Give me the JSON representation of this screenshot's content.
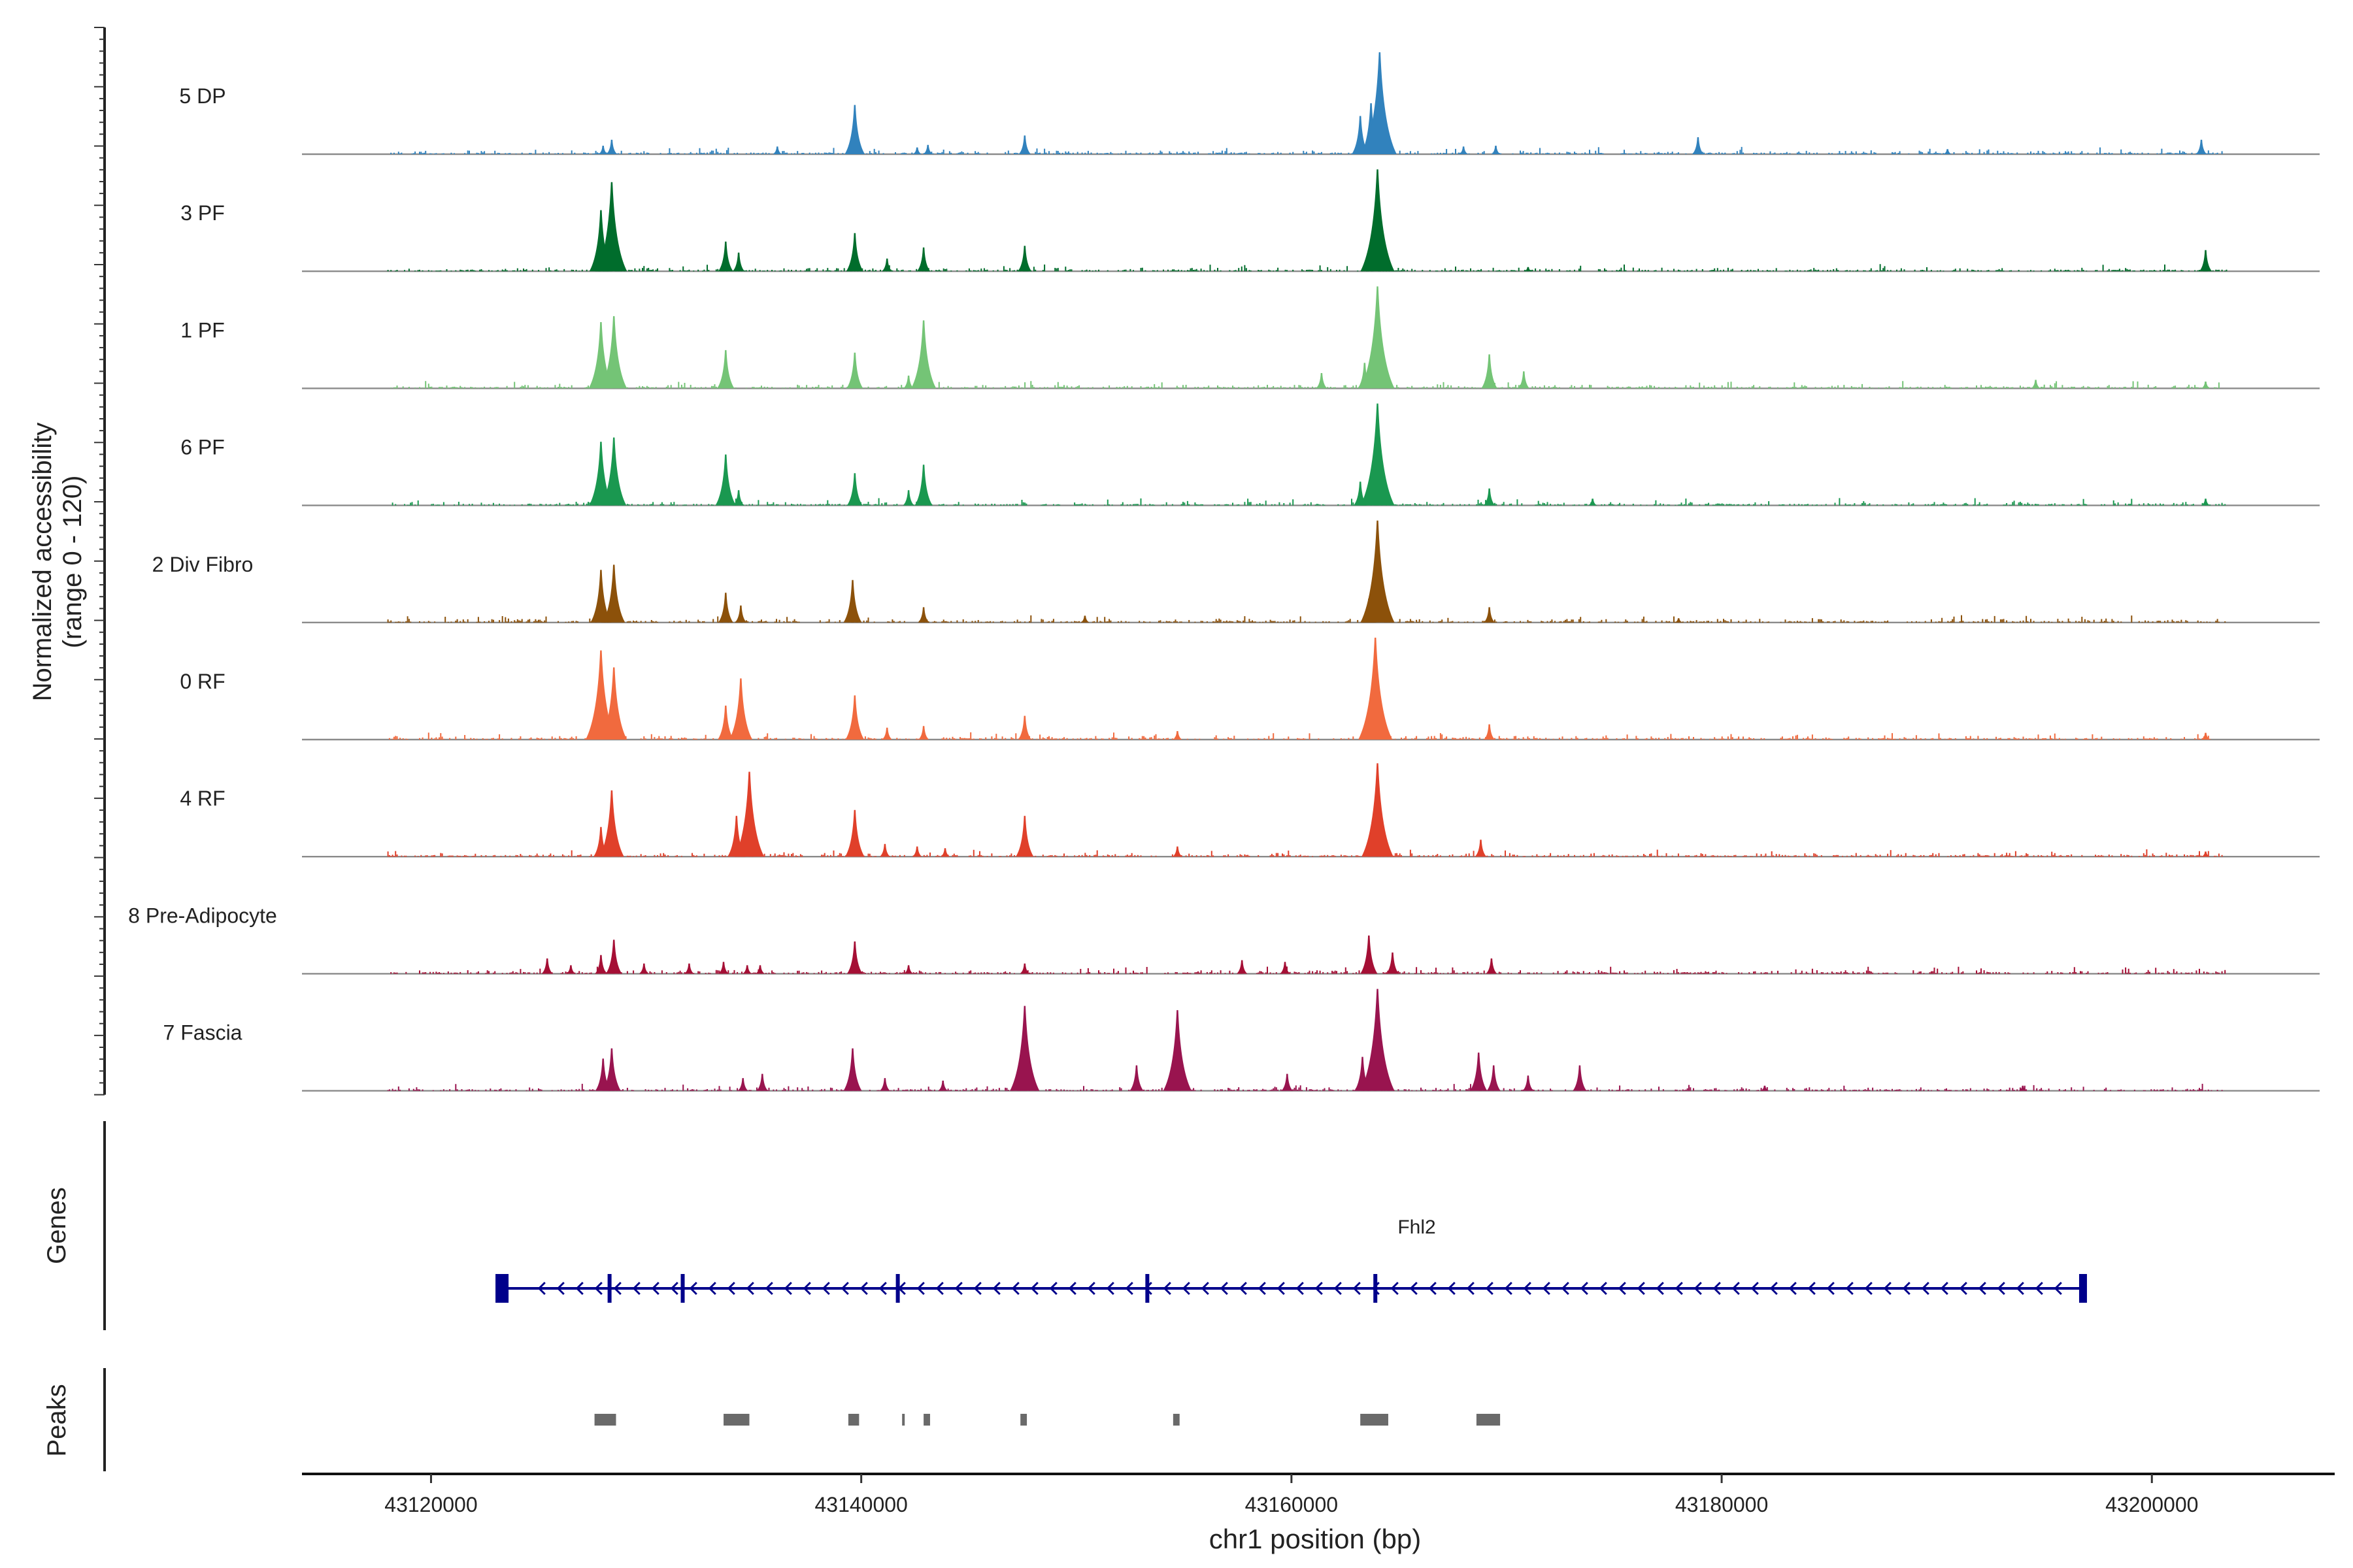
{
  "chart_data": {
    "type": "coverage",
    "ylabel_lines": [
      "Normalized accessibility",
      "(range 0 - 120)"
    ],
    "xlabel": "chr1 position (bp)",
    "xlim": [
      43114000,
      43208500
    ],
    "ylim": [
      0,
      120
    ],
    "x_ticks": [
      43120000,
      43140000,
      43160000,
      43180000,
      43200000
    ],
    "x_tick_labels": [
      "43120000",
      "43140000",
      "43160000",
      "43180000",
      "43200000"
    ],
    "tracks": [
      {
        "name": "5 DP",
        "color": "#3182bd",
        "peaks": [
          {
            "x": 43128000,
            "y": 10
          },
          {
            "x": 43128400,
            "y": 17
          },
          {
            "x": 43136100,
            "y": 9
          },
          {
            "x": 43139700,
            "y": 58
          },
          {
            "x": 43142600,
            "y": 8
          },
          {
            "x": 43143100,
            "y": 11
          },
          {
            "x": 43147600,
            "y": 22
          },
          {
            "x": 43163200,
            "y": 45
          },
          {
            "x": 43163700,
            "y": 60
          },
          {
            "x": 43164100,
            "y": 120
          },
          {
            "x": 43168000,
            "y": 9
          },
          {
            "x": 43169500,
            "y": 10
          },
          {
            "x": 43178900,
            "y": 20
          },
          {
            "x": 43190500,
            "y": 6
          },
          {
            "x": 43202300,
            "y": 17
          }
        ]
      },
      {
        "name": "3 PF",
        "color": "#006d2c",
        "peaks": [
          {
            "x": 43127900,
            "y": 72
          },
          {
            "x": 43128400,
            "y": 105
          },
          {
            "x": 43133700,
            "y": 35
          },
          {
            "x": 43134300,
            "y": 22
          },
          {
            "x": 43139700,
            "y": 45
          },
          {
            "x": 43141200,
            "y": 15
          },
          {
            "x": 43142900,
            "y": 28
          },
          {
            "x": 43147600,
            "y": 30
          },
          {
            "x": 43164000,
            "y": 120
          },
          {
            "x": 43171000,
            "y": 5
          },
          {
            "x": 43202500,
            "y": 25
          }
        ]
      },
      {
        "name": "1 PF",
        "color": "#74c476",
        "peaks": [
          {
            "x": 43127900,
            "y": 78
          },
          {
            "x": 43128500,
            "y": 85
          },
          {
            "x": 43133700,
            "y": 45
          },
          {
            "x": 43139700,
            "y": 42
          },
          {
            "x": 43142200,
            "y": 15
          },
          {
            "x": 43142900,
            "y": 80
          },
          {
            "x": 43161400,
            "y": 18
          },
          {
            "x": 43163400,
            "y": 30
          },
          {
            "x": 43164000,
            "y": 120
          },
          {
            "x": 43169200,
            "y": 40
          },
          {
            "x": 43170800,
            "y": 20
          },
          {
            "x": 43194600,
            "y": 10
          },
          {
            "x": 43202500,
            "y": 8
          }
        ]
      },
      {
        "name": "6 PF",
        "color": "#1a9850",
        "peaks": [
          {
            "x": 43127900,
            "y": 75
          },
          {
            "x": 43128500,
            "y": 80
          },
          {
            "x": 43133700,
            "y": 60
          },
          {
            "x": 43134300,
            "y": 18
          },
          {
            "x": 43139700,
            "y": 38
          },
          {
            "x": 43142200,
            "y": 18
          },
          {
            "x": 43142900,
            "y": 48
          },
          {
            "x": 43163200,
            "y": 28
          },
          {
            "x": 43164000,
            "y": 120
          },
          {
            "x": 43169200,
            "y": 20
          },
          {
            "x": 43174000,
            "y": 8
          },
          {
            "x": 43202500,
            "y": 8
          }
        ]
      },
      {
        "name": "2 Div Fibro",
        "color": "#8c510a",
        "peaks": [
          {
            "x": 43127900,
            "y": 62
          },
          {
            "x": 43128500,
            "y": 68
          },
          {
            "x": 43133700,
            "y": 35
          },
          {
            "x": 43134400,
            "y": 20
          },
          {
            "x": 43139600,
            "y": 50
          },
          {
            "x": 43142900,
            "y": 18
          },
          {
            "x": 43150400,
            "y": 8
          },
          {
            "x": 43163600,
            "y": 28
          },
          {
            "x": 43164000,
            "y": 120
          },
          {
            "x": 43169200,
            "y": 18
          },
          {
            "x": 43178000,
            "y": 5
          }
        ]
      },
      {
        "name": "0 RF",
        "color": "#f16a3e",
        "peaks": [
          {
            "x": 43127900,
            "y": 105
          },
          {
            "x": 43128500,
            "y": 85
          },
          {
            "x": 43133700,
            "y": 40
          },
          {
            "x": 43134400,
            "y": 72
          },
          {
            "x": 43139700,
            "y": 52
          },
          {
            "x": 43141200,
            "y": 14
          },
          {
            "x": 43142900,
            "y": 16
          },
          {
            "x": 43147600,
            "y": 28
          },
          {
            "x": 43154700,
            "y": 10
          },
          {
            "x": 43163900,
            "y": 120
          },
          {
            "x": 43169200,
            "y": 18
          },
          {
            "x": 43202500,
            "y": 8
          }
        ]
      },
      {
        "name": "4 RF",
        "color": "#e0402a",
        "peaks": [
          {
            "x": 43127900,
            "y": 35
          },
          {
            "x": 43128400,
            "y": 78
          },
          {
            "x": 43134200,
            "y": 48
          },
          {
            "x": 43134800,
            "y": 100
          },
          {
            "x": 43139700,
            "y": 55
          },
          {
            "x": 43141100,
            "y": 15
          },
          {
            "x": 43142600,
            "y": 12
          },
          {
            "x": 43143900,
            "y": 10
          },
          {
            "x": 43147600,
            "y": 48
          },
          {
            "x": 43154700,
            "y": 12
          },
          {
            "x": 43164000,
            "y": 110
          },
          {
            "x": 43168800,
            "y": 20
          },
          {
            "x": 43202500,
            "y": 6
          }
        ]
      },
      {
        "name": "8 Pre-Adipocyte",
        "color": "#a50f35",
        "peaks": [
          {
            "x": 43125400,
            "y": 18
          },
          {
            "x": 43126500,
            "y": 10
          },
          {
            "x": 43127900,
            "y": 22
          },
          {
            "x": 43128500,
            "y": 40
          },
          {
            "x": 43129900,
            "y": 12
          },
          {
            "x": 43132000,
            "y": 12
          },
          {
            "x": 43133600,
            "y": 14
          },
          {
            "x": 43134700,
            "y": 10
          },
          {
            "x": 43135300,
            "y": 10
          },
          {
            "x": 43139700,
            "y": 38
          },
          {
            "x": 43142200,
            "y": 10
          },
          {
            "x": 43147600,
            "y": 12
          },
          {
            "x": 43157700,
            "y": 16
          },
          {
            "x": 43159700,
            "y": 14
          },
          {
            "x": 43163600,
            "y": 45
          },
          {
            "x": 43164700,
            "y": 25
          },
          {
            "x": 43169300,
            "y": 18
          }
        ]
      },
      {
        "name": "7 Fascia",
        "color": "#99144f",
        "peaks": [
          {
            "x": 43128000,
            "y": 38
          },
          {
            "x": 43128400,
            "y": 50
          },
          {
            "x": 43134500,
            "y": 15
          },
          {
            "x": 43135400,
            "y": 20
          },
          {
            "x": 43139600,
            "y": 50
          },
          {
            "x": 43141100,
            "y": 15
          },
          {
            "x": 43143800,
            "y": 12
          },
          {
            "x": 43147600,
            "y": 100
          },
          {
            "x": 43152800,
            "y": 30
          },
          {
            "x": 43154700,
            "y": 95
          },
          {
            "x": 43159800,
            "y": 20
          },
          {
            "x": 43163300,
            "y": 40
          },
          {
            "x": 43164000,
            "y": 120
          },
          {
            "x": 43168700,
            "y": 45
          },
          {
            "x": 43169400,
            "y": 30
          },
          {
            "x": 43171000,
            "y": 18
          },
          {
            "x": 43173400,
            "y": 30
          },
          {
            "x": 43182000,
            "y": 6
          },
          {
            "x": 43194000,
            "y": 6
          }
        ]
      }
    ],
    "genes_label": "Genes",
    "gene": {
      "name": "Fhl2",
      "start": 43123200,
      "end": 43196900,
      "strand": "-",
      "color": "#00008b",
      "exons": [
        43123300,
        43128300,
        43131700,
        43141700,
        43153300,
        43163900,
        43196800
      ]
    },
    "peaks_label": "Peaks",
    "peak_regions": [
      {
        "start": 43127600,
        "end": 43128600
      },
      {
        "start": 43133600,
        "end": 43134800
      },
      {
        "start": 43139400,
        "end": 43139900
      },
      {
        "start": 43141900,
        "end": 43142000
      },
      {
        "start": 43142900,
        "end": 43143200
      },
      {
        "start": 43147400,
        "end": 43147700
      },
      {
        "start": 43154500,
        "end": 43154800
      },
      {
        "start": 43163200,
        "end": 43164500
      },
      {
        "start": 43168600,
        "end": 43169700
      }
    ],
    "peak_color": "#6a6a6a"
  }
}
